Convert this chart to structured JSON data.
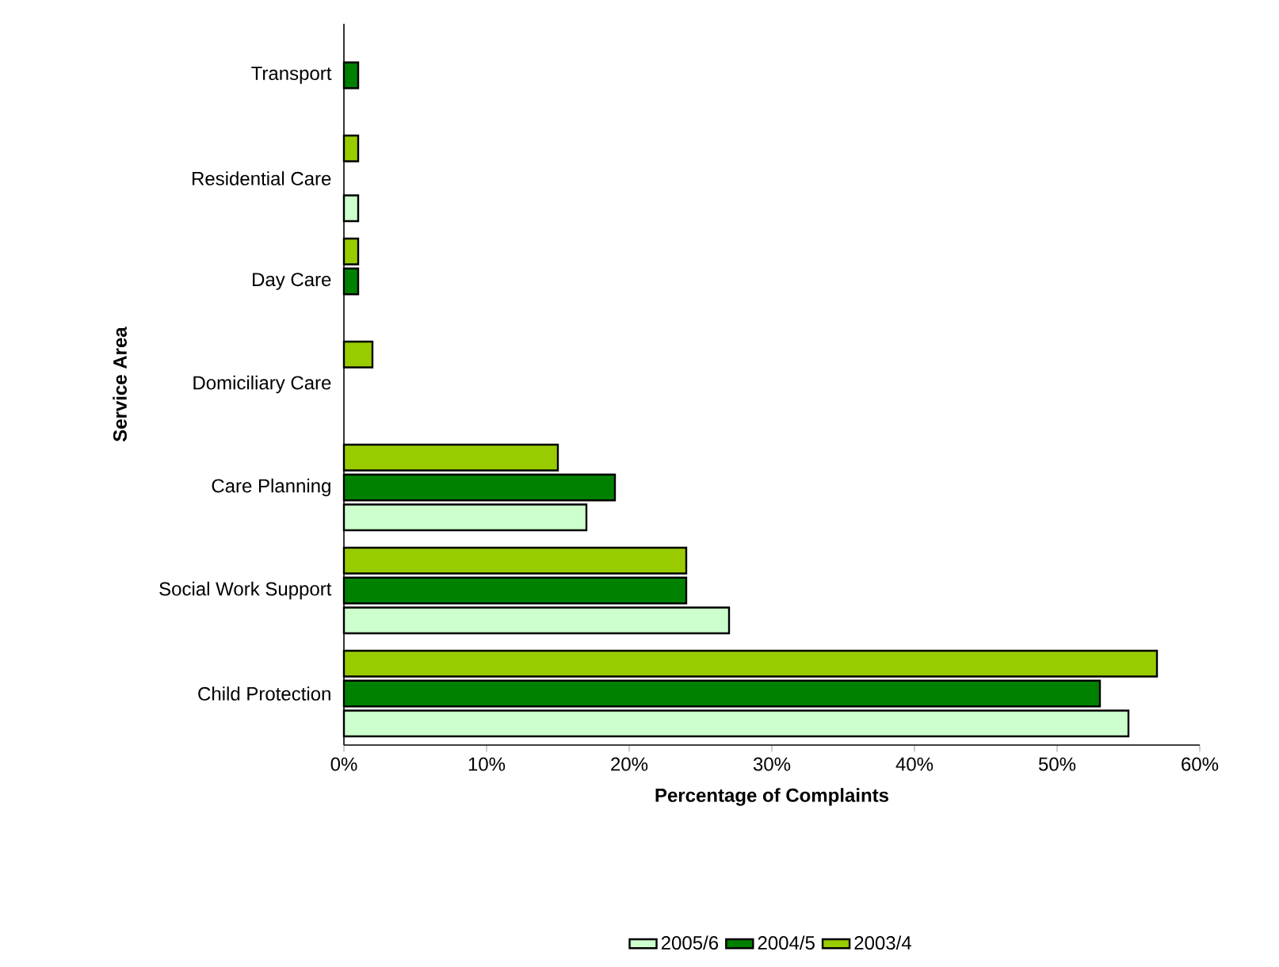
{
  "chart_data": {
    "type": "bar",
    "orientation": "horizontal",
    "xlabel": "Percentage of Complaints",
    "ylabel": "Service Area",
    "categories": [
      "Transport",
      "Residential Care",
      "Day Care",
      "Domiciliary Care",
      "Care Planning",
      "Social Work Support",
      "Child Protection"
    ],
    "series": [
      {
        "name": "2005/6",
        "color": "#ccffcc",
        "values": [
          null,
          1,
          null,
          null,
          17,
          27,
          55
        ]
      },
      {
        "name": "2004/5",
        "color": "#008000",
        "values": [
          1,
          null,
          1,
          null,
          19,
          24,
          53
        ]
      },
      {
        "name": "2003/4",
        "color": "#99cc00",
        "values": [
          null,
          1,
          1,
          2,
          15,
          24,
          57
        ]
      }
    ],
    "xlim": [
      0,
      60
    ],
    "xticks": [
      {
        "value": 0,
        "label": "0%"
      },
      {
        "value": 10,
        "label": "10%"
      },
      {
        "value": 20,
        "label": "20%"
      },
      {
        "value": 30,
        "label": "30%"
      },
      {
        "value": 40,
        "label": "40%"
      },
      {
        "value": 50,
        "label": "50%"
      },
      {
        "value": 60,
        "label": "60%"
      }
    ],
    "grid": false,
    "legend": "bottom"
  }
}
